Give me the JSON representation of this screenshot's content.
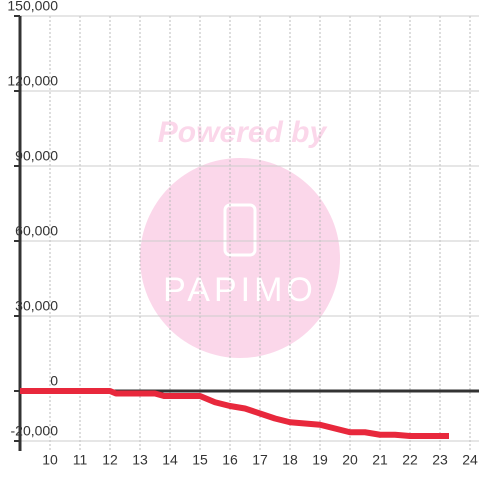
{
  "chart_data": {
    "type": "line",
    "watermark": {
      "top": "Powered by",
      "logo": "PAPIMO"
    },
    "x": [
      9,
      12,
      12.2,
      13.5,
      13.8,
      15,
      15.5,
      16,
      16.5,
      17,
      17.5,
      18,
      18.5,
      19,
      19.5,
      20,
      20.5,
      21,
      21.5,
      22,
      23.3
    ],
    "series": [
      {
        "color": "#e8283c",
        "values": [
          0,
          0,
          -1000,
          -1000,
          -2000,
          -2000,
          -4500,
          -6000,
          -7000,
          -9000,
          -11000,
          -12500,
          -13000,
          -13500,
          -15000,
          -16500,
          -16500,
          -17500,
          -17500,
          -18000,
          -18000
        ]
      }
    ],
    "xlim": [
      9,
      24.3
    ],
    "xticks": [
      10,
      11,
      12,
      13,
      14,
      15,
      16,
      17,
      18,
      19,
      20,
      21,
      22,
      23,
      24
    ],
    "ylim": [
      -24000,
      150000
    ],
    "yticks": [
      {
        "value": -20000,
        "label": "-20,000"
      },
      0,
      {
        "value": 30000,
        "label": "30,000"
      },
      {
        "value": 60000,
        "label": "60,000"
      },
      {
        "value": 90000,
        "label": "90,000"
      },
      {
        "value": 120000,
        "label": "120,000"
      },
      {
        "value": 150000,
        "label": "150,000"
      }
    ],
    "grid": true
  }
}
